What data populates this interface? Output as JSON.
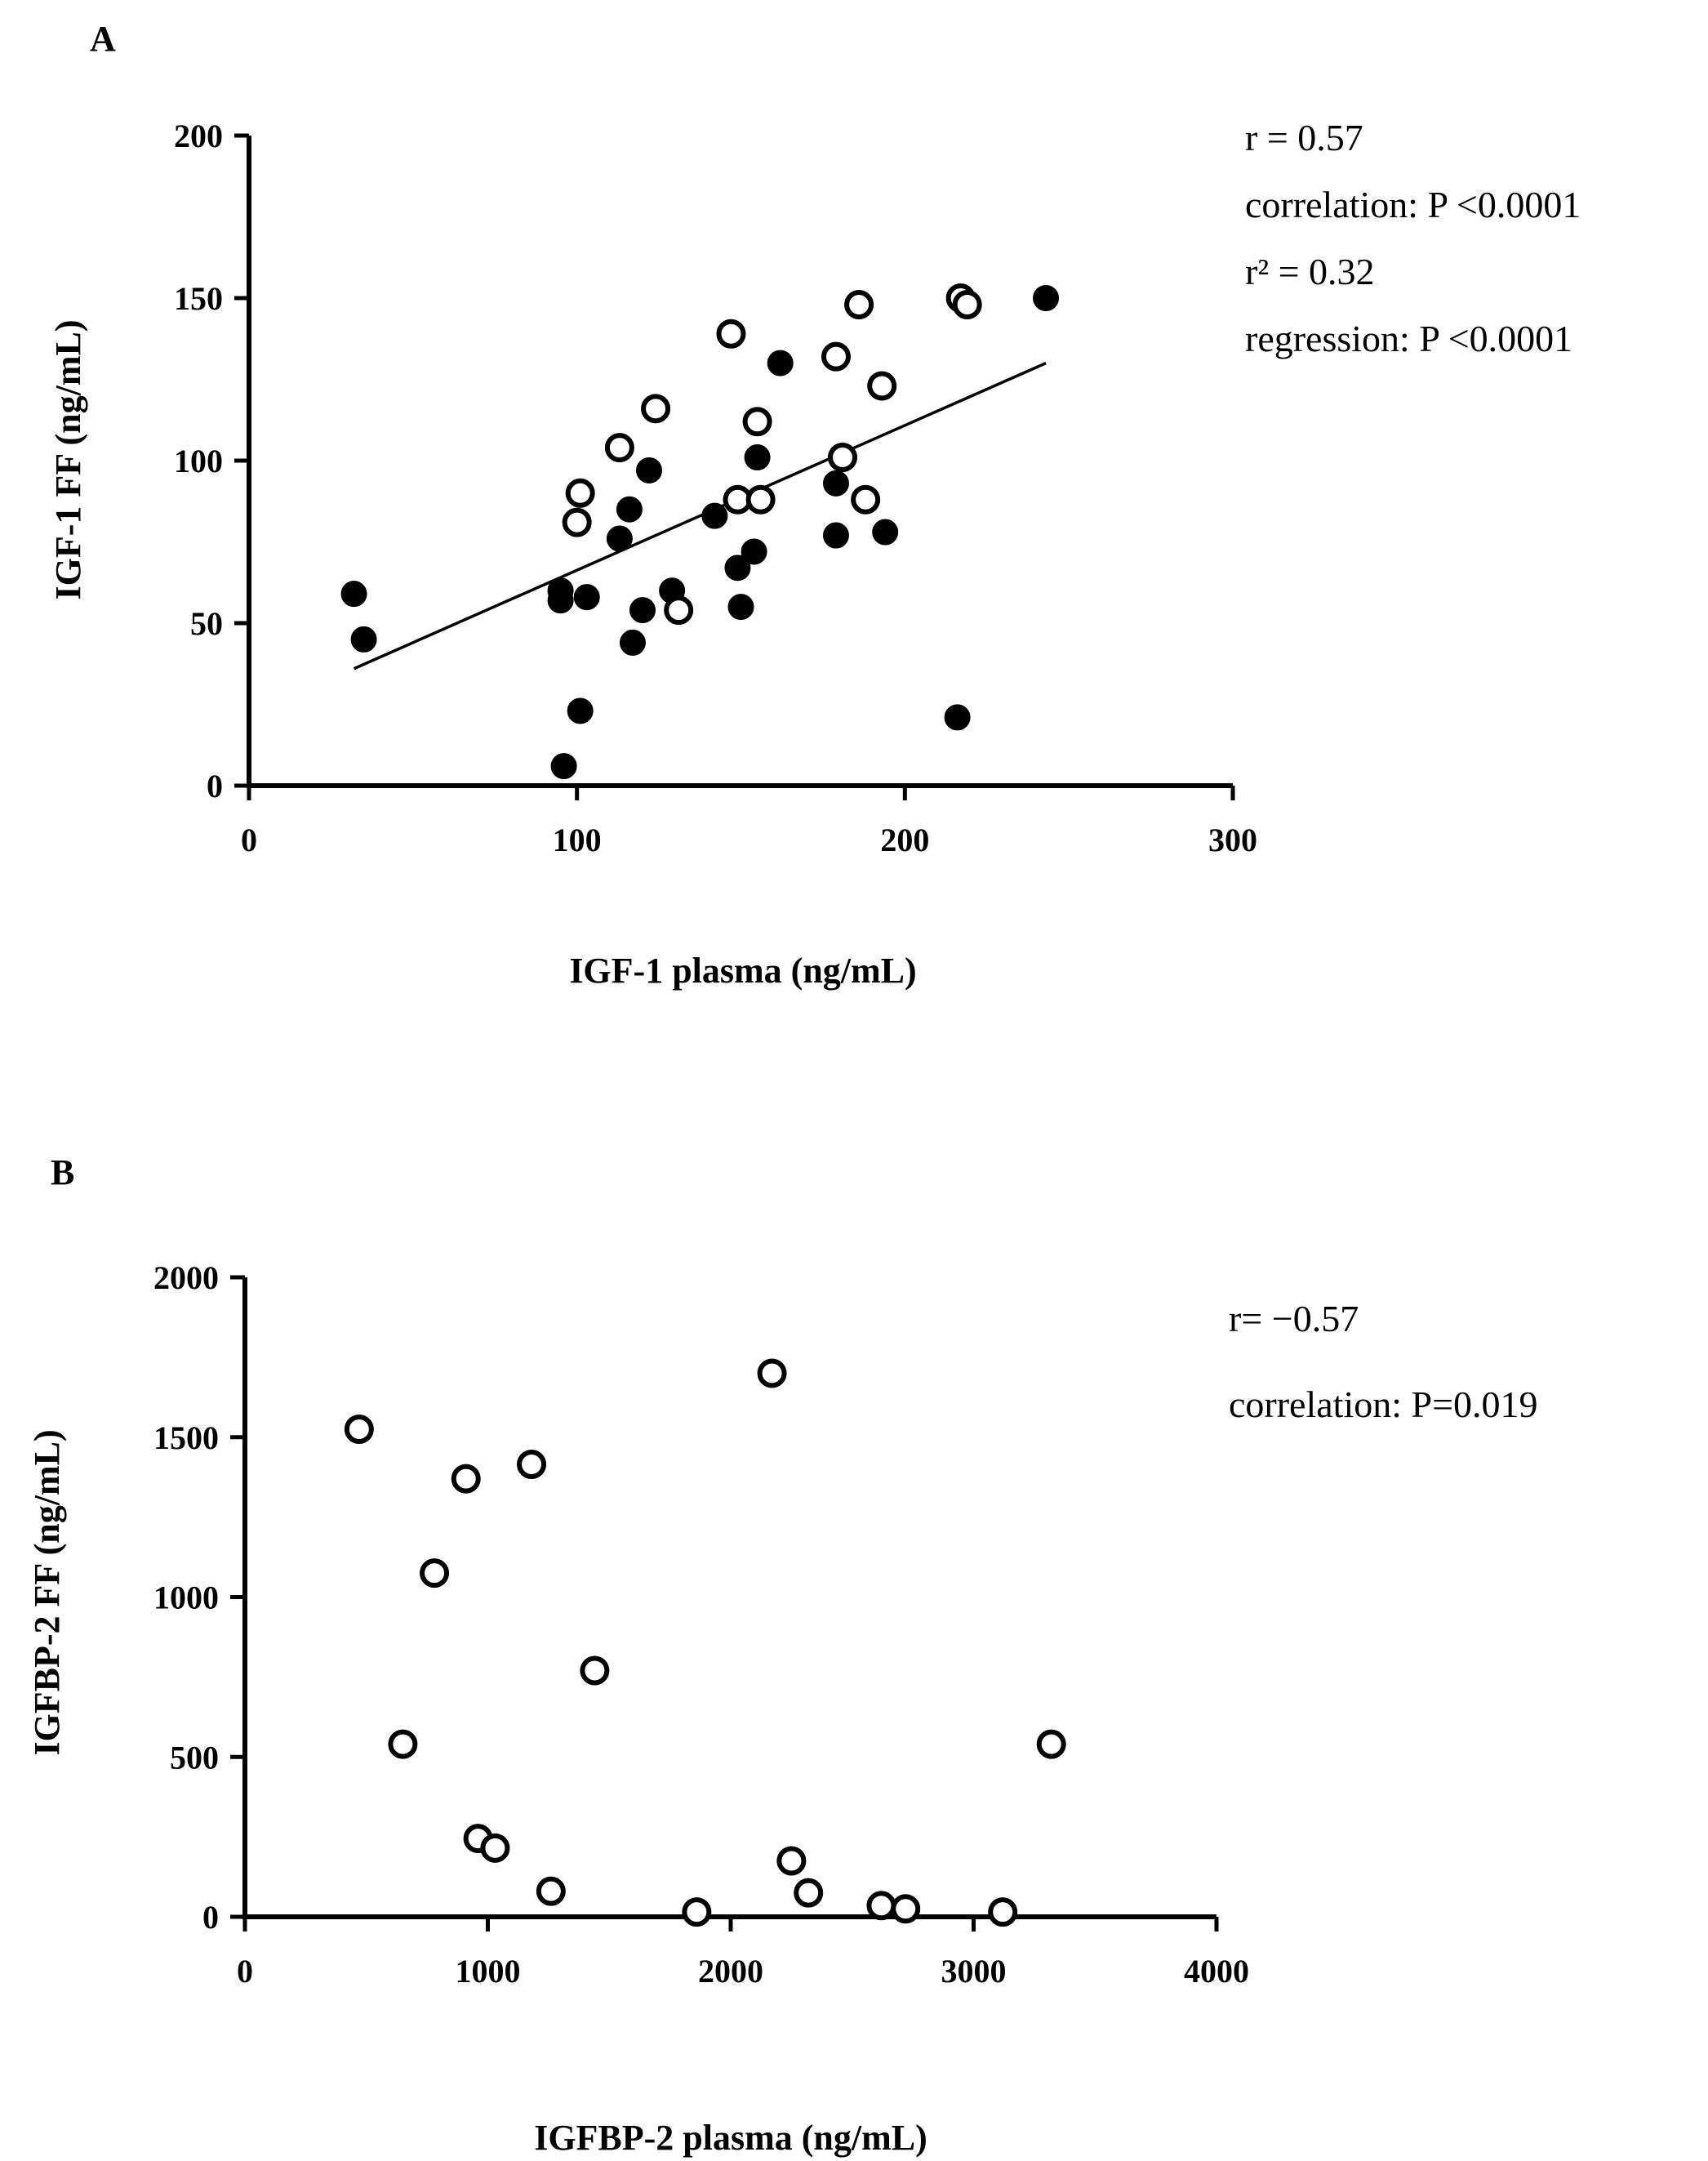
{
  "chart_data": [
    {
      "type": "scatter",
      "panel_label": "A",
      "xlabel": "IGF-1 plasma (ng/mL)",
      "ylabel": "IGF-1 FF (ng/mL)",
      "xlim": [
        0,
        300
      ],
      "ylim": [
        0,
        200
      ],
      "x_ticks": [
        0,
        100,
        200,
        300
      ],
      "y_ticks": [
        0,
        50,
        100,
        150,
        200
      ],
      "x_tick_labels": [
        "0",
        "100",
        "200",
        "300"
      ],
      "y_tick_labels": [
        "0",
        "50",
        "100",
        "150",
        "200"
      ],
      "annotations": [
        "r = 0.57",
        "correlation:  P <0.0001",
        "r² = 0.32",
        "regression: P <0.0001"
      ],
      "regression_line": {
        "x": [
          32,
          243
        ],
        "y": [
          36,
          130
        ]
      },
      "series": [
        {
          "marker": "filled",
          "points": [
            [
              32,
              59
            ],
            [
              35,
              45
            ],
            [
              95,
              57
            ],
            [
              95,
              60
            ],
            [
              96,
              6
            ],
            [
              101,
              23
            ],
            [
              103,
              58
            ],
            [
              113,
              76
            ],
            [
              116,
              85
            ],
            [
              117,
              44
            ],
            [
              120,
              54
            ],
            [
              122,
              97
            ],
            [
              129,
              60
            ],
            [
              142,
              83
            ],
            [
              149,
              67
            ],
            [
              150,
              55
            ],
            [
              154,
              72
            ],
            [
              155,
              101
            ],
            [
              162,
              130
            ],
            [
              179,
              93
            ],
            [
              179,
              77
            ],
            [
              194,
              78
            ],
            [
              216,
              21
            ],
            [
              217,
              150
            ],
            [
              219,
              148
            ],
            [
              243,
              150
            ]
          ]
        },
        {
          "marker": "open",
          "points": [
            [
              100,
              81
            ],
            [
              101,
              90
            ],
            [
              113,
              104
            ],
            [
              124,
              116
            ],
            [
              131,
              54
            ],
            [
              147,
              139
            ],
            [
              149,
              88
            ],
            [
              155,
              112
            ],
            [
              156,
              88
            ],
            [
              179,
              132
            ],
            [
              181,
              101
            ],
            [
              186,
              148
            ],
            [
              188,
              88
            ],
            [
              193,
              123
            ],
            [
              217,
              150
            ],
            [
              219,
              148
            ]
          ]
        }
      ]
    },
    {
      "type": "scatter",
      "panel_label": "B",
      "xlabel": "IGFBP-2 plasma (ng/mL)",
      "ylabel": "IGFBP-2 FF (ng/mL)",
      "xlim": [
        0,
        4000
      ],
      "ylim": [
        0,
        2000
      ],
      "x_ticks": [
        0,
        1000,
        2000,
        3000,
        4000
      ],
      "y_ticks": [
        0,
        500,
        1000,
        1500,
        2000
      ],
      "x_tick_labels": [
        "0",
        "1000",
        "2000",
        "3000",
        "4000"
      ],
      "y_tick_labels": [
        "0",
        "500",
        "1000",
        "1500",
        "2000"
      ],
      "annotations": [
        "r= −0.57",
        "correlation: P=0.019"
      ],
      "series": [
        {
          "marker": "open",
          "points": [
            [
              470,
              1525
            ],
            [
              650,
              540
            ],
            [
              780,
              1075
            ],
            [
              910,
              1370
            ],
            [
              960,
              245
            ],
            [
              1030,
              215
            ],
            [
              1180,
              1415
            ],
            [
              1260,
              80
            ],
            [
              1440,
              770
            ],
            [
              1860,
              15
            ],
            [
              2170,
              1700
            ],
            [
              2250,
              175
            ],
            [
              2320,
              75
            ],
            [
              2620,
              35
            ],
            [
              2720,
              25
            ],
            [
              3120,
              15
            ],
            [
              3320,
              540
            ]
          ]
        }
      ]
    }
  ]
}
